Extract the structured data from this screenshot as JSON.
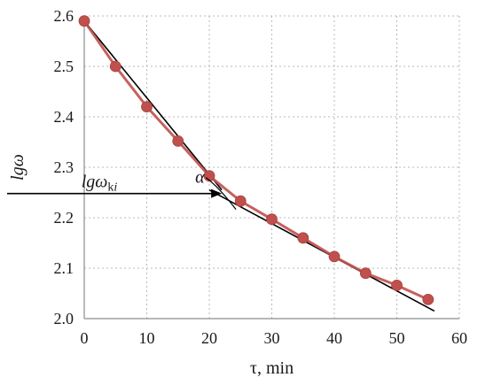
{
  "chart_data": {
    "type": "scatter",
    "xlabel": "τ, min",
    "ylabel": "lgω",
    "xlim": [
      0,
      60
    ],
    "ylim": [
      2.0,
      2.6
    ],
    "x_ticks": [
      "0",
      "10",
      "20",
      "30",
      "40",
      "50",
      "60"
    ],
    "y_ticks": [
      "2.0",
      "2.1",
      "2.2",
      "2.3",
      "2.4",
      "2.5",
      "2.6"
    ],
    "grid": true,
    "series": [
      {
        "color": "#c0504d",
        "x": [
          0,
          5,
          10,
          15,
          20,
          25,
          30,
          35,
          40,
          45,
          50,
          55
        ],
        "y": [
          2.59,
          2.5,
          2.42,
          2.352,
          2.283,
          2.233,
          2.197,
          2.16,
          2.123,
          2.09,
          2.066,
          2.038
        ]
      }
    ],
    "fit_lines": [
      {
        "color": "#000000",
        "x": [
          0,
          22
        ],
        "y": [
          2.59,
          2.255
        ]
      },
      {
        "color": "#000000",
        "x": [
          20,
          56
        ],
        "y": [
          2.255,
          2.015
        ]
      }
    ],
    "annotations": {
      "marker_label": "lgω",
      "marker_label_subscript": "k",
      "marker_label_subscript_index": "i",
      "marker_level_y": 2.248,
      "marker_intersect_x": 22,
      "angle_label": "α"
    }
  }
}
